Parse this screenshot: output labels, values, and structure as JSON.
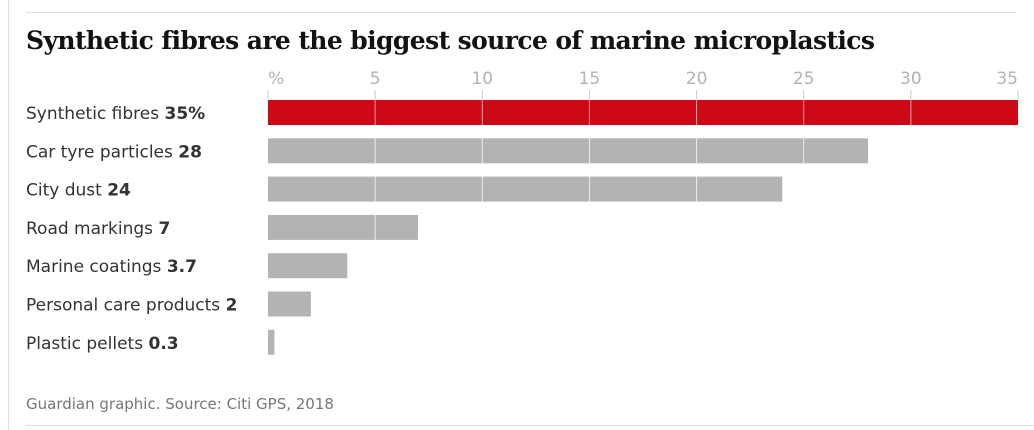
{
  "chart_data": {
    "type": "bar",
    "orientation": "horizontal",
    "title": "Synthetic fibres are the biggest source of marine microplastics",
    "xlabel": "%",
    "ylabel": "",
    "xlim": [
      0,
      35
    ],
    "x_ticks": [
      0,
      5,
      10,
      15,
      20,
      25,
      30,
      35
    ],
    "x_tick_labels": [
      "%",
      "5",
      "10",
      "15",
      "20",
      "25",
      "30",
      "35"
    ],
    "grid": true,
    "categories": [
      "Synthetic fibres",
      "Car tyre particles",
      "City dust",
      "Road markings",
      "Marine coatings",
      "Personal care products",
      "Plastic pellets"
    ],
    "values": [
      35,
      28,
      24,
      7,
      3.7,
      2,
      0.3
    ],
    "value_labels": [
      "35%",
      "28",
      "24",
      "7",
      "3.7",
      "2",
      "0.3"
    ],
    "highlight_index": 0,
    "colors": {
      "highlight": "#cc0a17",
      "default": "#b3b3b3",
      "gridline_on_bar": "#ffffff",
      "tick": "#cccccc"
    },
    "source": "Guardian graphic. Source: Citi GPS, 2018"
  }
}
